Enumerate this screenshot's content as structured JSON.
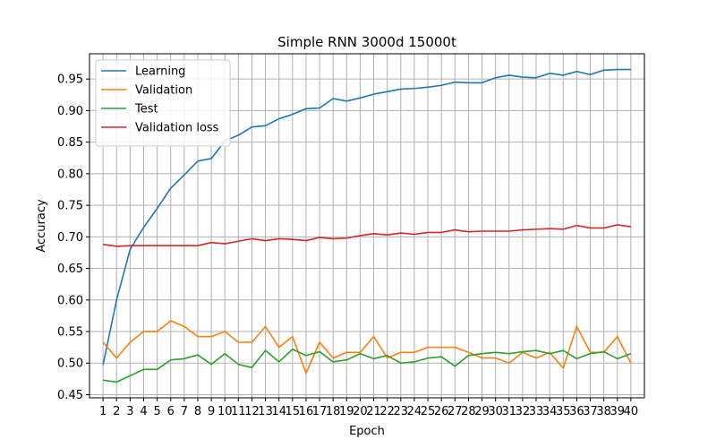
{
  "chart_data": {
    "type": "line",
    "title": "Simple RNN 3000d 15000t",
    "xlabel": "Epoch",
    "ylabel": "Accuracy",
    "x": [
      1,
      2,
      3,
      4,
      5,
      6,
      7,
      8,
      9,
      10,
      11,
      12,
      13,
      14,
      15,
      16,
      17,
      18,
      19,
      20,
      21,
      22,
      23,
      24,
      25,
      26,
      27,
      28,
      29,
      30,
      31,
      32,
      33,
      34,
      35,
      36,
      37,
      38,
      39,
      40
    ],
    "xlim": [
      0,
      41
    ],
    "ylim": [
      0.445,
      0.99
    ],
    "yticks": [
      0.45,
      0.5,
      0.55,
      0.6,
      0.65,
      0.7,
      0.75,
      0.8,
      0.85,
      0.9,
      0.95
    ],
    "ytick_labels": [
      "0.45",
      "0.50",
      "0.55",
      "0.60",
      "0.65",
      "0.70",
      "0.75",
      "0.80",
      "0.85",
      "0.90",
      "0.95"
    ],
    "grid": true,
    "legend_position": "upper-left",
    "series": [
      {
        "name": "Learning",
        "color": "#1f77b4",
        "values": [
          0.497,
          0.6,
          0.68,
          0.715,
          0.745,
          0.777,
          0.798,
          0.82,
          0.824,
          0.852,
          0.861,
          0.874,
          0.876,
          0.887,
          0.894,
          0.903,
          0.904,
          0.919,
          0.915,
          0.92,
          0.926,
          0.93,
          0.934,
          0.935,
          0.937,
          0.94,
          0.945,
          0.944,
          0.944,
          0.952,
          0.956,
          0.953,
          0.952,
          0.959,
          0.956,
          0.962,
          0.957,
          0.964,
          0.965,
          0.965
        ]
      },
      {
        "name": "Validation",
        "color": "#ff7f0e",
        "values": [
          0.533,
          0.508,
          0.533,
          0.55,
          0.55,
          0.567,
          0.558,
          0.542,
          0.542,
          0.55,
          0.533,
          0.533,
          0.558,
          0.525,
          0.542,
          0.484,
          0.533,
          0.508,
          0.517,
          0.517,
          0.542,
          0.508,
          0.517,
          0.517,
          0.525,
          0.525,
          0.525,
          0.517,
          0.508,
          0.508,
          0.5,
          0.517,
          0.508,
          0.517,
          0.492,
          0.558,
          0.517,
          0.517,
          0.542,
          0.5
        ]
      },
      {
        "name": "Test",
        "color": "#2ca02c",
        "values": [
          0.473,
          0.47,
          0.48,
          0.49,
          0.49,
          0.505,
          0.507,
          0.513,
          0.498,
          0.515,
          0.498,
          0.493,
          0.52,
          0.502,
          0.522,
          0.512,
          0.518,
          0.502,
          0.505,
          0.515,
          0.507,
          0.512,
          0.5,
          0.502,
          0.508,
          0.51,
          0.495,
          0.512,
          0.515,
          0.517,
          0.515,
          0.518,
          0.52,
          0.515,
          0.52,
          0.507,
          0.515,
          0.518,
          0.507,
          0.515
        ]
      },
      {
        "name": "Validation loss",
        "color": "#d62728",
        "values": [
          0.688,
          0.685,
          0.686,
          0.686,
          0.686,
          0.686,
          0.686,
          0.686,
          0.691,
          0.689,
          0.693,
          0.697,
          0.694,
          0.697,
          0.696,
          0.694,
          0.699,
          0.697,
          0.698,
          0.702,
          0.705,
          0.703,
          0.706,
          0.704,
          0.707,
          0.707,
          0.711,
          0.708,
          0.709,
          0.709,
          0.709,
          0.711,
          0.712,
          0.713,
          0.712,
          0.718,
          0.714,
          0.714,
          0.719,
          0.716
        ]
      }
    ]
  }
}
